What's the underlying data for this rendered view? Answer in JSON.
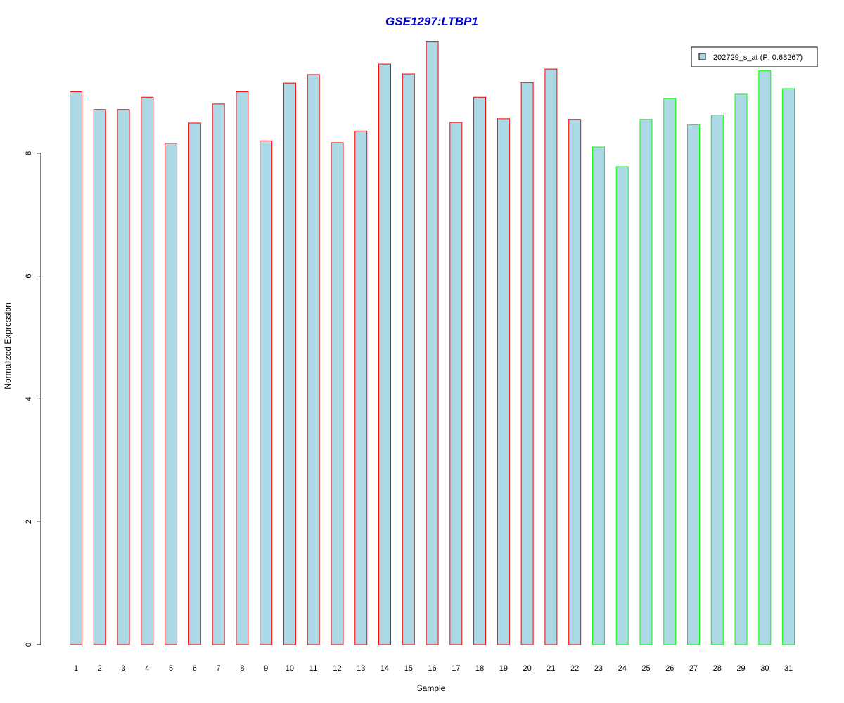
{
  "chart_data": {
    "type": "bar",
    "title": "GSE1297:LTBP1",
    "xlabel": "Sample",
    "ylabel": "Normalized Expression",
    "categories": [
      "1",
      "2",
      "3",
      "4",
      "5",
      "6",
      "7",
      "8",
      "9",
      "10",
      "11",
      "12",
      "13",
      "14",
      "15",
      "16",
      "17",
      "18",
      "19",
      "20",
      "21",
      "22",
      "23",
      "24",
      "25",
      "26",
      "27",
      "28",
      "29",
      "30",
      "31"
    ],
    "series": [
      {
        "name": "202729_s_at (P: 0.68267)",
        "values": [
          9.0,
          8.71,
          8.71,
          8.91,
          8.16,
          8.49,
          8.8,
          9.0,
          8.2,
          9.14,
          9.28,
          8.17,
          8.36,
          9.45,
          9.29,
          9.81,
          8.5,
          8.91,
          8.56,
          9.15,
          9.37,
          8.55,
          8.1,
          7.78,
          8.55,
          8.89,
          8.46,
          8.62,
          8.96,
          9.34,
          9.05
        ]
      }
    ],
    "groups": [
      {
        "from": 1,
        "to": 22,
        "border_color": "#ff0000"
      },
      {
        "from": 23,
        "to": 31,
        "border_color": "#00ff00"
      }
    ],
    "yticks": [
      0,
      2,
      4,
      6,
      8
    ],
    "ylim": [
      0,
      9.81
    ],
    "bar_fill": "#add8e6",
    "title_color": "#0000cc",
    "legend_position": "top-right",
    "grid": false
  }
}
